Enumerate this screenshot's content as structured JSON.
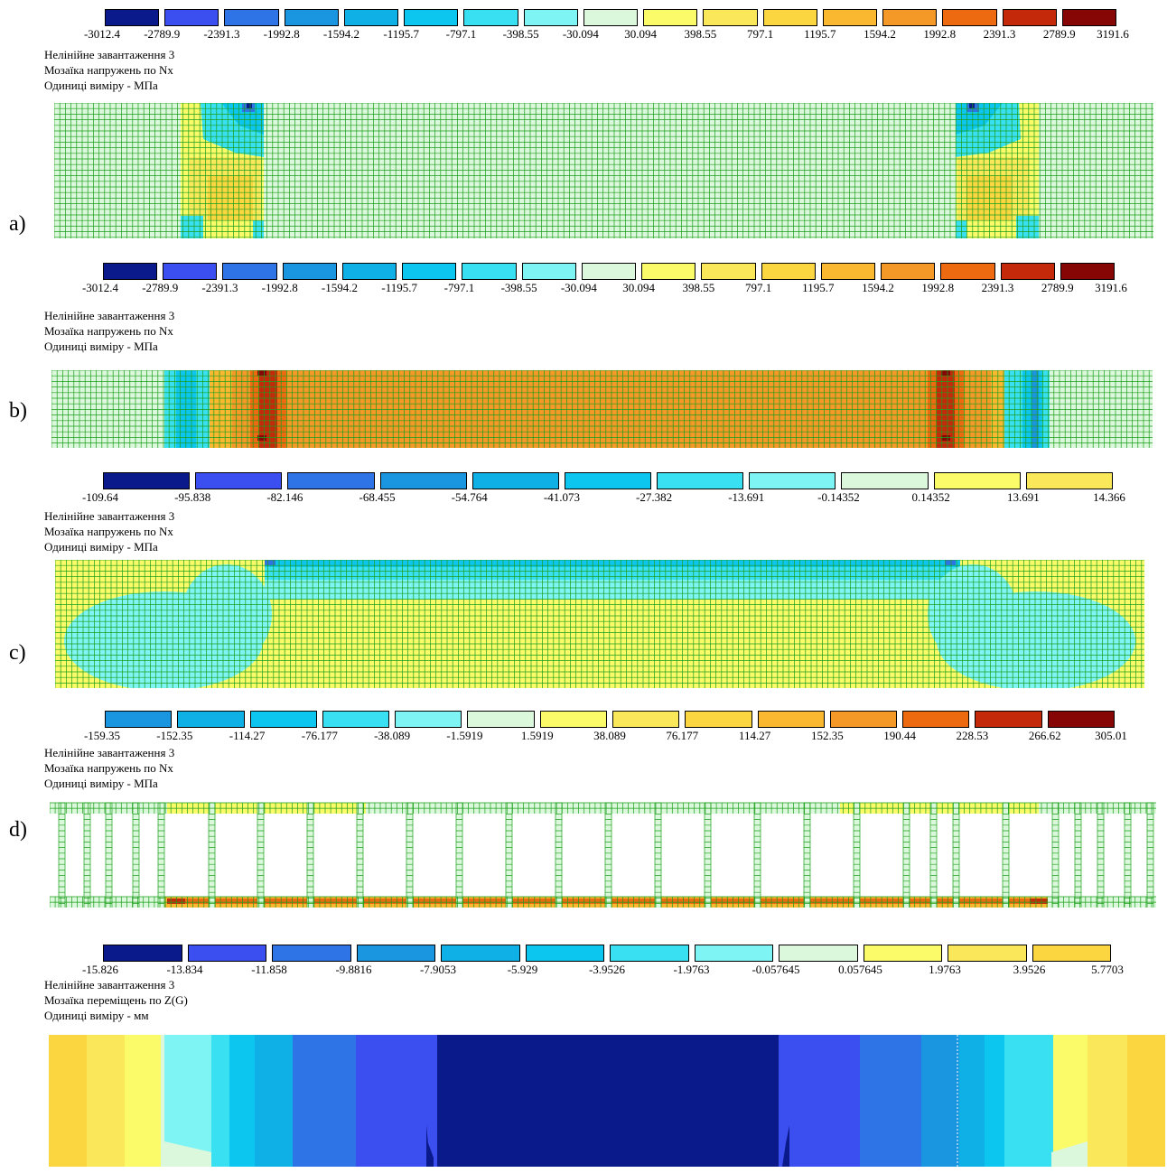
{
  "colors": {
    "c_n8": "#0a1a8a",
    "c_n7": "#3b4ef0",
    "c_n6": "#2f74e6",
    "c_n5": "#1a96e0",
    "c_n4": "#0fb0e6",
    "c_n3": "#0cc6f0",
    "c_n2": "#38e0f2",
    "c_n1": "#7ef4f4",
    "c_0": "#dcf8dc",
    "c_p1": "#fbfb6a",
    "c_p2": "#fbe85a",
    "c_p3": "#fbd640",
    "c_p4": "#f9b830",
    "c_p5": "#f49828",
    "c_p6": "#ee6a10",
    "c_p7": "#c42a0a",
    "c_p8": "#860606",
    "mesh": "#1a9e1a"
  },
  "panels": [
    {
      "letter": "a)",
      "caption": [
        "Нелінійне завантаження 3",
        "Мозаїка напружень по Nx",
        "Одиниці виміру - МПа"
      ],
      "legend": {
        "ticks": [
          "-3012.4",
          "-2789.9",
          "-2391.3",
          "-1992.8",
          "-1594.2",
          "-1195.7",
          "-797.1",
          "-398.55",
          "-30.094",
          "30.094",
          "398.55",
          "797.1",
          "1195.7",
          "1594.2",
          "1992.8",
          "2391.3",
          "2789.9",
          "3191.6"
        ],
        "colors": [
          "c_n8",
          "c_n7",
          "c_n6",
          "c_n5",
          "c_n4",
          "c_n3",
          "c_n2",
          "c_n1",
          "c_0",
          "c_p1",
          "c_p2",
          "c_p3",
          "c_p4",
          "c_p5",
          "c_p6",
          "c_p7",
          "c_p8"
        ]
      }
    },
    {
      "letter": "b)",
      "caption": [
        "Нелінійне завантаження 3",
        "Мозаїка напружень по Nx",
        "Одиниці виміру - МПа"
      ],
      "legend": {
        "ticks": [
          "-3012.4",
          "-2789.9",
          "-2391.3",
          "-1992.8",
          "-1594.2",
          "-1195.7",
          "-797.1",
          "-398.55",
          "-30.094",
          "30.094",
          "398.55",
          "797.1",
          "1195.7",
          "1594.2",
          "1992.8",
          "2391.3",
          "2789.9",
          "3191.6"
        ],
        "colors": [
          "c_n8",
          "c_n7",
          "c_n6",
          "c_n5",
          "c_n4",
          "c_n3",
          "c_n2",
          "c_n1",
          "c_0",
          "c_p1",
          "c_p2",
          "c_p3",
          "c_p4",
          "c_p5",
          "c_p6",
          "c_p7",
          "c_p8"
        ]
      }
    },
    {
      "letter": "c)",
      "caption": [
        "Нелінійне завантаження 3",
        "Мозаїка напружень по Nx",
        "Одиниці виміру - МПа"
      ],
      "legend": {
        "ticks": [
          "-109.64",
          "-95.838",
          "-82.146",
          "-68.455",
          "-54.764",
          "-41.073",
          "-27.382",
          "-13.691",
          "-0.14352",
          "0.14352",
          "13.691",
          "14.366"
        ],
        "colors": [
          "c_n8",
          "c_n7",
          "c_n6",
          "c_n5",
          "c_n4",
          "c_n3",
          "c_n2",
          "c_n1",
          "c_0",
          "c_p1",
          "c_p2"
        ]
      }
    },
    {
      "letter": "d)",
      "caption": [
        "Нелінійне завантаження 3",
        "Мозаїка напружень по Nx",
        "Одиниці виміру - МПа"
      ],
      "legend": {
        "ticks": [
          "-159.35",
          "-152.35",
          "-114.27",
          "-76.177",
          "-38.089",
          "-1.5919",
          "1.5919",
          "38.089",
          "76.177",
          "114.27",
          "152.35",
          "190.44",
          "228.53",
          "266.62",
          "305.01"
        ],
        "colors": [
          "c_n5",
          "c_n4",
          "c_n3",
          "c_n2",
          "c_n1",
          "c_0",
          "c_p1",
          "c_p2",
          "c_p3",
          "c_p4",
          "c_p5",
          "c_p6",
          "c_p7",
          "c_p8"
        ]
      }
    },
    {
      "letter": "",
      "caption": [
        "Нелінійне завантаження 3",
        "Мозаїка переміщень по Z(G)",
        "Одиниці виміру - мм"
      ],
      "legend": {
        "ticks": [
          "-15.826",
          "-13.834",
          "-11.858",
          "-9.8816",
          "-7.9053",
          "-5.929",
          "-3.9526",
          "-1.9763",
          "-0.057645",
          "0.057645",
          "1.9763",
          "3.9526",
          "5.7703"
        ],
        "colors": [
          "c_n8",
          "c_n7",
          "c_n6",
          "c_n5",
          "c_n4",
          "c_n3",
          "c_n2",
          "c_n1",
          "c_0",
          "c_p1",
          "c_p2",
          "c_p3"
        ]
      }
    }
  ]
}
